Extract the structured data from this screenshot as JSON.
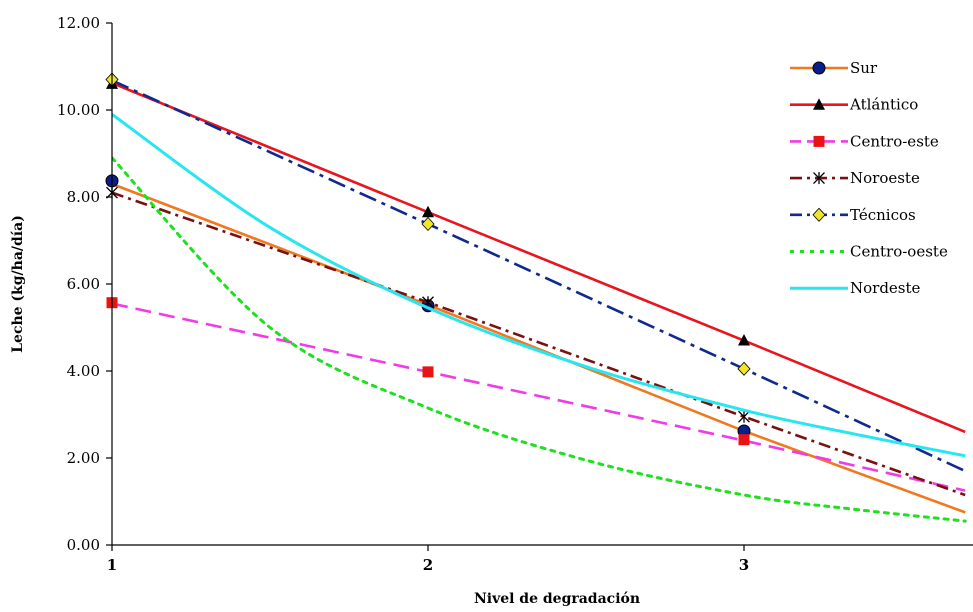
{
  "chart_data": {
    "type": "line",
    "title": "",
    "xlabel": "Nivel de degradación",
    "ylabel": "Leche (kg/ha/día)",
    "categories": [
      "1",
      "2",
      "3"
    ],
    "x_marked": [
      1,
      2,
      3
    ],
    "xlim": [
      1,
      3.7
    ],
    "ylim": [
      0,
      12
    ],
    "y_ticks": [
      "0.00",
      "2.00",
      "4.00",
      "6.00",
      "8.00",
      "10.00",
      "12.00"
    ],
    "x_ticks": [
      "1",
      "2",
      "3"
    ],
    "grid": false,
    "legend_position": "right",
    "series": [
      {
        "name": "Sur",
        "marker_values": [
          8.37,
          5.5,
          2.62
        ],
        "line": [
          [
            1,
            8.3
          ],
          [
            2,
            5.52
          ],
          [
            3,
            2.62
          ],
          [
            3.7,
            0.75
          ]
        ],
        "color": "#F07820",
        "dash": "",
        "marker": "circle",
        "marker_color": "#0A1E8C",
        "curve": false
      },
      {
        "name": "Atlántico",
        "marker_values": [
          10.6,
          7.65,
          4.7
        ],
        "line": [
          [
            1,
            10.62
          ],
          [
            2,
            7.65
          ],
          [
            3,
            4.7
          ],
          [
            3.7,
            2.6
          ]
        ],
        "color": "#E8141E",
        "dash": "",
        "marker": "triangle",
        "marker_color": "#000000",
        "curve": false
      },
      {
        "name": "Centro-este",
        "marker_values": [
          5.57,
          3.98,
          2.42
        ],
        "line": [
          [
            1,
            5.55
          ],
          [
            2,
            3.98
          ],
          [
            3,
            2.4
          ],
          [
            3.7,
            1.25
          ]
        ],
        "color": "#F03CE6",
        "dash": "16 8",
        "marker": "square",
        "marker_color": "#E81414",
        "curve": false
      },
      {
        "name": "Noroeste",
        "marker_values": [
          8.1,
          5.58,
          2.95
        ],
        "line": [
          [
            1,
            8.1
          ],
          [
            2,
            5.58
          ],
          [
            3,
            2.95
          ],
          [
            3.7,
            1.15
          ]
        ],
        "color": "#7A1010",
        "dash": "12 5 3 5",
        "marker": "asterisk",
        "marker_color": "#000000",
        "curve": false
      },
      {
        "name": "Técnicos",
        "marker_values": [
          10.7,
          7.38,
          4.05
        ],
        "line": [
          [
            1,
            10.68
          ],
          [
            2,
            7.38
          ],
          [
            3,
            4.05
          ],
          [
            3.7,
            1.7
          ]
        ],
        "color": "#0F2A8C",
        "dash": "18 6 4 6",
        "marker": "diamond",
        "marker_color": "#F0E628",
        "curve": false
      },
      {
        "name": "Centro-oeste",
        "marker_values": [
          8.9,
          3.15,
          1.15
        ],
        "line": [
          [
            1,
            8.9
          ],
          [
            1.5,
            5.0
          ],
          [
            2,
            3.15
          ],
          [
            2.5,
            1.95
          ],
          [
            3,
            1.15
          ],
          [
            3.35,
            0.82
          ],
          [
            3.7,
            0.55
          ]
        ],
        "color": "#1EE01E",
        "dash": "4 6",
        "marker": "none",
        "marker_color": "",
        "curve": true
      },
      {
        "name": "Nordeste",
        "marker_values": [
          9.9,
          5.45,
          3.1
        ],
        "line": [
          [
            1,
            9.9
          ],
          [
            1.5,
            7.3
          ],
          [
            2,
            5.45
          ],
          [
            2.5,
            4.1
          ],
          [
            3,
            3.1
          ],
          [
            3.35,
            2.55
          ],
          [
            3.7,
            2.05
          ]
        ],
        "color": "#28E6F0",
        "dash": "",
        "marker": "none",
        "marker_color": "",
        "curve": true
      }
    ]
  }
}
